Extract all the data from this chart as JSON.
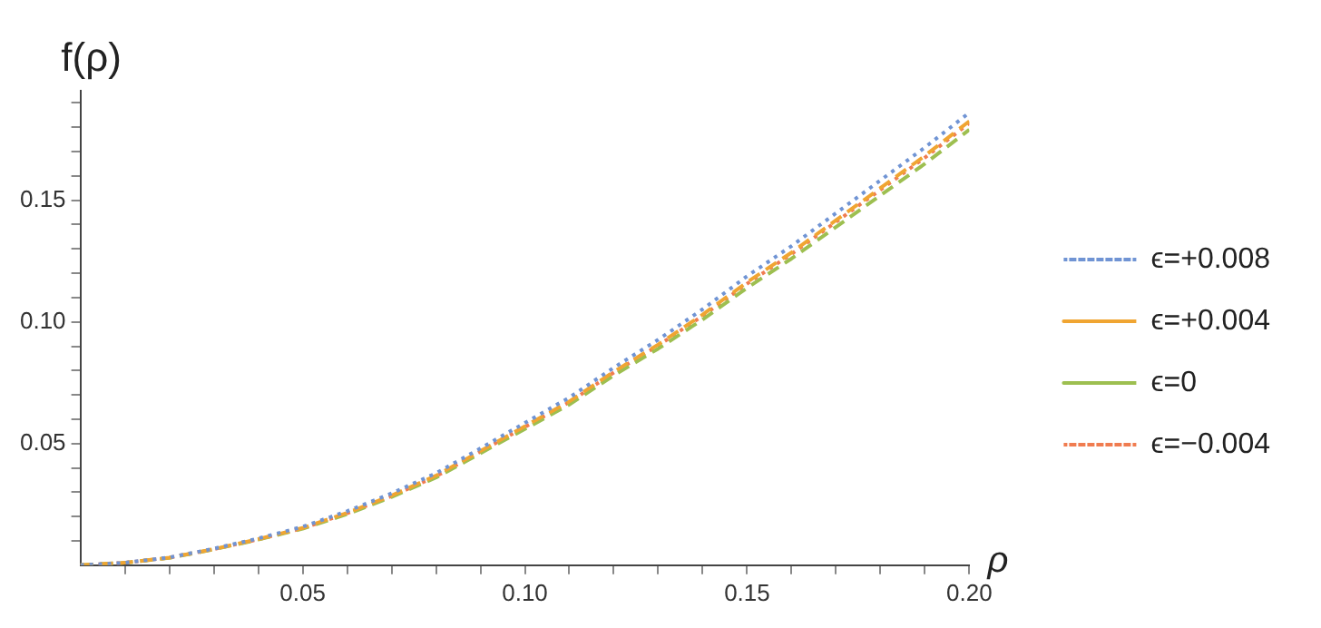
{
  "chart_data": {
    "type": "line",
    "xlabel": "ρ",
    "ylabel": "f(ρ)",
    "x": [
      0,
      0.01,
      0.02,
      0.03,
      0.04,
      0.05,
      0.06,
      0.07,
      0.08,
      0.09,
      0.1,
      0.11,
      0.12,
      0.13,
      0.14,
      0.15,
      0.16,
      0.17,
      0.18,
      0.19,
      0.2
    ],
    "series": [
      {
        "name": "ϵ=+0.008",
        "color": "#7094d4",
        "line_style": "dotted",
        "values": [
          0,
          0.001,
          0.0032,
          0.0068,
          0.011,
          0.0158,
          0.0222,
          0.0295,
          0.0378,
          0.048,
          0.0585,
          0.0689,
          0.0812,
          0.0927,
          0.1052,
          0.1188,
          0.1312,
          0.1447,
          0.1582,
          0.1717,
          0.186
        ]
      },
      {
        "name": "ϵ=+0.004",
        "color": "#f0a532",
        "line_style": "dashed",
        "values": [
          0,
          0.001,
          0.0031,
          0.0066,
          0.0107,
          0.0153,
          0.0215,
          0.0286,
          0.0368,
          0.0469,
          0.0571,
          0.0673,
          0.0795,
          0.0907,
          0.103,
          0.1163,
          0.1285,
          0.1418,
          0.155,
          0.1683,
          0.1825
        ]
      },
      {
        "name": "ϵ=0",
        "color": "#9dbf50",
        "line_style": "dashed",
        "values": [
          0,
          0.001,
          0.003,
          0.0065,
          0.0105,
          0.015,
          0.021,
          0.028,
          0.036,
          0.046,
          0.056,
          0.066,
          0.078,
          0.089,
          0.101,
          0.114,
          0.126,
          0.139,
          0.152,
          0.165,
          0.179
        ]
      },
      {
        "name": "ϵ=−0.004",
        "color": "#f07c50",
        "line_style": "dotted",
        "values": [
          0,
          0.001,
          0.0031,
          0.0066,
          0.0106,
          0.0152,
          0.0213,
          0.0284,
          0.0365,
          0.0467,
          0.0568,
          0.067,
          0.0792,
          0.0903,
          0.1025,
          0.1157,
          0.1279,
          0.1411,
          0.1543,
          0.1675,
          0.1817
        ]
      }
    ],
    "xlim": [
      0,
      0.2
    ],
    "xticks": [
      {
        "value": 0.01,
        "label": null
      },
      {
        "value": 0.02,
        "label": null
      },
      {
        "value": 0.03,
        "label": null
      },
      {
        "value": 0.04,
        "label": null
      },
      {
        "value": 0.05,
        "label": "0.05"
      },
      {
        "value": 0.06,
        "label": null
      },
      {
        "value": 0.07,
        "label": null
      },
      {
        "value": 0.08,
        "label": null
      },
      {
        "value": 0.09,
        "label": null
      },
      {
        "value": 0.1,
        "label": "0.10"
      },
      {
        "value": 0.11,
        "label": null
      },
      {
        "value": 0.12,
        "label": null
      },
      {
        "value": 0.13,
        "label": null
      },
      {
        "value": 0.14,
        "label": null
      },
      {
        "value": 0.15,
        "label": "0.15"
      },
      {
        "value": 0.16,
        "label": null
      },
      {
        "value": 0.17,
        "label": null
      },
      {
        "value": 0.18,
        "label": null
      },
      {
        "value": 0.19,
        "label": null
      },
      {
        "value": 0.2,
        "label": "0.20"
      }
    ],
    "ylim": [
      0,
      0.195
    ],
    "yticks": [
      {
        "value": 0.01,
        "label": null
      },
      {
        "value": 0.02,
        "label": null
      },
      {
        "value": 0.03,
        "label": null
      },
      {
        "value": 0.04,
        "label": null
      },
      {
        "value": 0.05,
        "label": "0.05"
      },
      {
        "value": 0.06,
        "label": null
      },
      {
        "value": 0.07,
        "label": null
      },
      {
        "value": 0.08,
        "label": null
      },
      {
        "value": 0.09,
        "label": null
      },
      {
        "value": 0.1,
        "label": "0.10"
      },
      {
        "value": 0.11,
        "label": null
      },
      {
        "value": 0.12,
        "label": null
      },
      {
        "value": 0.13,
        "label": null
      },
      {
        "value": 0.14,
        "label": null
      },
      {
        "value": 0.15,
        "label": "0.15"
      },
      {
        "value": 0.16,
        "label": null
      },
      {
        "value": 0.17,
        "label": null
      },
      {
        "value": 0.18,
        "label": null
      },
      {
        "value": 0.19,
        "label": null
      }
    ],
    "grid": false,
    "legend": "right",
    "marker": "none"
  }
}
